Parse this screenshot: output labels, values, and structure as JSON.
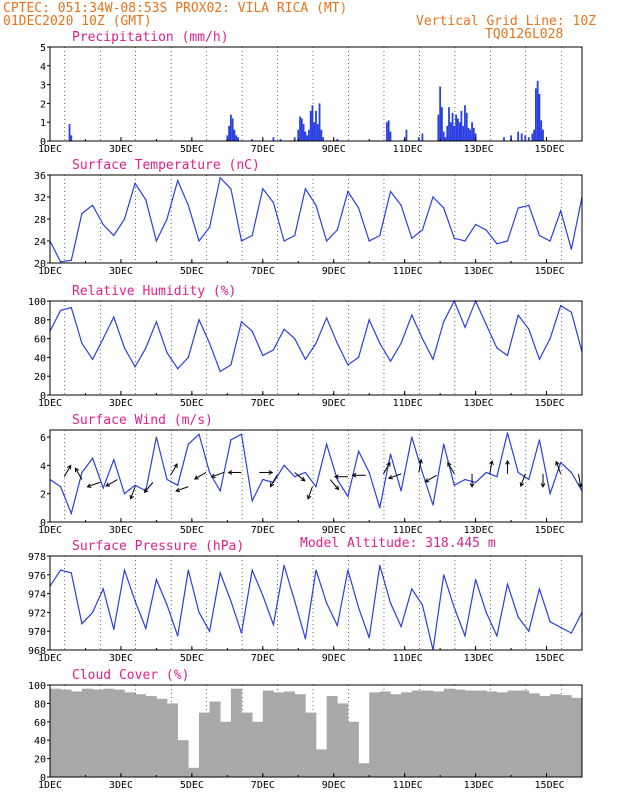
{
  "header": {
    "line1": "CPTEC:  051:34W-08:53S  PROX02: VILA RICA (MT)",
    "line2": "01DEC2020 10Z (GMT)",
    "grid_note": "Vertical Grid Line: 10Z",
    "code": "TQ0126L028",
    "altitude": "Model Altitude: 318.445 m"
  },
  "colors": {
    "header": "#e8731c",
    "title": "#e0208a",
    "series": "#2a3fe0",
    "cloud": "#a8a8a8"
  },
  "chart_data": [
    {
      "type": "bar",
      "title": "Precipitation (mm/h)",
      "ylim": [
        0,
        5
      ],
      "yticks": [
        "0",
        "1",
        "2",
        "3",
        "4",
        "5"
      ],
      "x_range_days": [
        1,
        16
      ],
      "xticks": [
        "1DEC",
        "3DEC",
        "5DEC",
        "7DEC",
        "9DEC",
        "11DEC",
        "13DEC",
        "15DEC"
      ],
      "x": [
        1.55,
        1.6,
        6.0,
        6.05,
        6.1,
        6.15,
        6.2,
        6.25,
        6.3,
        6.7,
        7.3,
        7.5,
        7.9,
        8.0,
        8.05,
        8.1,
        8.15,
        8.2,
        8.25,
        8.3,
        8.35,
        8.4,
        8.45,
        8.5,
        8.55,
        8.6,
        8.65,
        8.7,
        9.1,
        10.5,
        10.55,
        10.6,
        11.0,
        11.05,
        11.4,
        11.5,
        11.95,
        12.0,
        12.05,
        12.1,
        12.15,
        12.2,
        12.25,
        12.3,
        12.35,
        12.4,
        12.45,
        12.5,
        12.55,
        12.6,
        12.65,
        12.7,
        12.75,
        12.8,
        12.85,
        12.9,
        12.95,
        13.0,
        13.8,
        14.0,
        14.2,
        14.3,
        14.4,
        14.5,
        14.6,
        14.65,
        14.7,
        14.75,
        14.8,
        14.85,
        14.9
      ],
      "values": [
        0.9,
        0.3,
        0.3,
        0.8,
        1.4,
        1.2,
        0.6,
        0.3,
        0.2,
        0.1,
        0.2,
        0.1,
        0.2,
        0.6,
        1.3,
        1.2,
        0.9,
        0.5,
        0.3,
        0.6,
        1.6,
        1.9,
        1.0,
        1.6,
        0.9,
        2.0,
        0.6,
        0.2,
        0.1,
        1.0,
        1.1,
        0.5,
        0.1,
        0.6,
        0.2,
        0.4,
        1.4,
        2.9,
        1.8,
        0.5,
        0.2,
        0.8,
        1.8,
        1.0,
        1.5,
        0.8,
        1.4,
        1.2,
        1.0,
        1.6,
        0.8,
        1.9,
        1.5,
        0.7,
        0.6,
        1.0,
        0.7,
        0.4,
        0.2,
        0.3,
        0.5,
        0.4,
        0.3,
        0.2,
        0.4,
        0.6,
        2.8,
        3.2,
        2.5,
        1.1,
        0.6
      ]
    },
    {
      "type": "line",
      "title": "Surface Temperature (nC)",
      "ylim": [
        20,
        36
      ],
      "yticks": [
        "20",
        "24",
        "28",
        "32",
        "36"
      ],
      "x_range_days": [
        1,
        16
      ],
      "xticks": [
        "1DEC",
        "3DEC",
        "5DEC",
        "7DEC",
        "9DEC",
        "11DEC",
        "13DEC",
        "15DEC"
      ],
      "x": [
        1.0,
        1.3,
        1.6,
        1.9,
        2.2,
        2.5,
        2.8,
        3.1,
        3.4,
        3.7,
        4.0,
        4.3,
        4.6,
        4.9,
        5.2,
        5.5,
        5.8,
        6.1,
        6.4,
        6.7,
        7.0,
        7.3,
        7.6,
        7.9,
        8.2,
        8.5,
        8.8,
        9.1,
        9.4,
        9.7,
        10.0,
        10.3,
        10.6,
        10.9,
        11.2,
        11.5,
        11.8,
        12.1,
        12.4,
        12.7,
        13.0,
        13.3,
        13.6,
        13.9,
        14.2,
        14.5,
        14.8,
        15.1,
        15.4,
        15.7,
        16.0
      ],
      "values": [
        24,
        20.2,
        20.5,
        29,
        30.5,
        27,
        25,
        28,
        34.5,
        31.5,
        24,
        28,
        35,
        30.5,
        24,
        26.5,
        35.5,
        33.5,
        24,
        25,
        33.5,
        31,
        24,
        25,
        33.5,
        30.5,
        24,
        26,
        33,
        30,
        24,
        25,
        33,
        30.5,
        24.5,
        26,
        32,
        30,
        24.5,
        24,
        27,
        26,
        23.5,
        24,
        30,
        30.5,
        25,
        24,
        29.5,
        22.5,
        32
      ]
    },
    {
      "type": "line",
      "title": "Relative Humidity (%)",
      "ylim": [
        0,
        100
      ],
      "yticks": [
        "0",
        "20",
        "40",
        "60",
        "80",
        "100"
      ],
      "x_range_days": [
        1,
        16
      ],
      "xticks": [
        "1DEC",
        "3DEC",
        "5DEC",
        "7DEC",
        "9DEC",
        "11DEC",
        "13DEC",
        "15DEC"
      ],
      "x": [
        1.0,
        1.3,
        1.6,
        1.9,
        2.2,
        2.5,
        2.8,
        3.1,
        3.4,
        3.7,
        4.0,
        4.3,
        4.6,
        4.9,
        5.2,
        5.5,
        5.8,
        6.1,
        6.4,
        6.7,
        7.0,
        7.3,
        7.6,
        7.9,
        8.2,
        8.5,
        8.8,
        9.1,
        9.4,
        9.7,
        10.0,
        10.3,
        10.6,
        10.9,
        11.2,
        11.5,
        11.8,
        12.1,
        12.4,
        12.7,
        13.0,
        13.3,
        13.6,
        13.9,
        14.2,
        14.5,
        14.8,
        15.1,
        15.4,
        15.7,
        16.0
      ],
      "values": [
        68,
        90,
        93,
        55,
        38,
        60,
        83,
        50,
        30,
        50,
        78,
        45,
        28,
        40,
        80,
        55,
        25,
        32,
        78,
        68,
        42,
        48,
        70,
        60,
        38,
        55,
        82,
        55,
        32,
        40,
        80,
        55,
        36,
        55,
        85,
        60,
        38,
        78,
        100,
        72,
        100,
        75,
        50,
        42,
        85,
        70,
        38,
        60,
        95,
        88,
        46
      ]
    },
    {
      "type": "line",
      "title": "Surface Wind (m/s)",
      "ylim": [
        0,
        6.5
      ],
      "yticks": [
        "0",
        "2",
        "4",
        "6"
      ],
      "x_range_days": [
        1,
        16
      ],
      "xticks": [
        "1DEC",
        "3DEC",
        "5DEC",
        "7DEC",
        "9DEC",
        "11DEC",
        "13DEC",
        "15DEC"
      ],
      "x": [
        1.0,
        1.3,
        1.6,
        1.9,
        2.2,
        2.5,
        2.8,
        3.1,
        3.4,
        3.7,
        4.0,
        4.3,
        4.6,
        4.9,
        5.2,
        5.5,
        5.8,
        6.1,
        6.4,
        6.7,
        7.0,
        7.3,
        7.6,
        7.9,
        8.2,
        8.5,
        8.8,
        9.1,
        9.4,
        9.7,
        10.0,
        10.3,
        10.6,
        10.9,
        11.2,
        11.5,
        11.8,
        12.1,
        12.4,
        12.7,
        13.0,
        13.3,
        13.6,
        13.9,
        14.2,
        14.5,
        14.8,
        15.1,
        15.4,
        15.7,
        16.0
      ],
      "values": [
        3,
        2.5,
        0.6,
        3.5,
        4.5,
        2.4,
        4.4,
        2.0,
        2.6,
        2.2,
        6.0,
        3.0,
        2.6,
        5.5,
        6.2,
        3.5,
        2.2,
        5.8,
        6.2,
        1.5,
        3.0,
        2.8,
        4.0,
        3.2,
        3.5,
        2.5,
        5.5,
        3.0,
        1.8,
        5.0,
        3.5,
        1.0,
        4.8,
        2.2,
        6.0,
        3.5,
        1.2,
        5.5,
        2.6,
        3.0,
        2.8,
        3.5,
        3.2,
        6.3,
        3.5,
        3.0,
        5.8,
        2.0,
        4.2,
        3.5,
        2.2
      ],
      "arrows": {
        "x": [
          1.4,
          1.9,
          2.4,
          2.9,
          3.4,
          3.9,
          4.4,
          4.9,
          5.4,
          5.9,
          6.4,
          6.9,
          7.4,
          7.9,
          8.4,
          8.9,
          9.4,
          9.9,
          10.4,
          10.9,
          11.4,
          11.9,
          12.4,
          12.9,
          13.4,
          13.9,
          14.4,
          14.9,
          15.4,
          15.9
        ],
        "speed": [
          3.2,
          3.0,
          2.8,
          3.0,
          2.5,
          2.8,
          3.3,
          2.5,
          3.5,
          3.5,
          3.5,
          3.5,
          3.3,
          3.5,
          2.5,
          3.0,
          3.2,
          3.3,
          3.4,
          3.4,
          3.5,
          3.3,
          3.4,
          3.4,
          3.4,
          3.4,
          3.4,
          3.4,
          3.4,
          3.4
        ],
        "dir_deg": [
          60,
          120,
          200,
          210,
          250,
          230,
          60,
          200,
          210,
          200,
          180,
          0,
          240,
          320,
          250,
          310,
          180,
          180,
          60,
          200,
          80,
          210,
          120,
          270,
          80,
          90,
          250,
          270,
          110,
          280
        ]
      }
    },
    {
      "type": "line",
      "title": "Surface Pressure (hPa)",
      "ylim": [
        968,
        978
      ],
      "yticks": [
        "968",
        "970",
        "972",
        "974",
        "976",
        "978"
      ],
      "x_range_days": [
        1,
        16
      ],
      "xticks": [
        "1DEC",
        "3DEC",
        "5DEC",
        "7DEC",
        "9DEC",
        "11DEC",
        "13DEC",
        "15DEC"
      ],
      "x": [
        1.0,
        1.3,
        1.6,
        1.9,
        2.2,
        2.5,
        2.8,
        3.1,
        3.4,
        3.7,
        4.0,
        4.3,
        4.6,
        4.9,
        5.2,
        5.5,
        5.8,
        6.1,
        6.4,
        6.7,
        7.0,
        7.3,
        7.6,
        7.9,
        8.2,
        8.5,
        8.8,
        9.1,
        9.4,
        9.7,
        10.0,
        10.3,
        10.6,
        10.9,
        11.2,
        11.5,
        11.8,
        12.1,
        12.4,
        12.7,
        13.0,
        13.3,
        13.6,
        13.9,
        14.2,
        14.5,
        14.8,
        15.1,
        15.4,
        15.7,
        16.0
      ],
      "values": [
        974.8,
        976.5,
        976.2,
        970.8,
        972,
        974.5,
        970.2,
        976.5,
        973.2,
        970.3,
        975.5,
        972.8,
        969.5,
        976.5,
        972,
        970,
        976.2,
        973.2,
        969.8,
        976.5,
        973.8,
        970.7,
        977,
        973.2,
        969.2,
        976.5,
        973,
        970.6,
        976.5,
        972.5,
        969.3,
        977,
        973,
        970.5,
        974.5,
        972.8,
        968,
        976,
        972.5,
        969.5,
        975.5,
        972,
        969.5,
        975,
        971.5,
        970,
        974.5,
        971,
        970.4,
        969.8,
        972
      ]
    },
    {
      "type": "area",
      "title": "Cloud Cover (%)",
      "ylim": [
        0,
        100
      ],
      "yticks": [
        "0",
        "20",
        "40",
        "60",
        "80",
        "100"
      ],
      "x_range_days": [
        1,
        16
      ],
      "xticks": [
        "1DEC",
        "3DEC",
        "5DEC",
        "7DEC",
        "9DEC",
        "11DEC",
        "13DEC",
        "15DEC"
      ],
      "x": [
        1.0,
        1.3,
        1.6,
        1.9,
        2.2,
        2.5,
        2.8,
        3.1,
        3.4,
        3.7,
        4.0,
        4.3,
        4.6,
        4.9,
        5.2,
        5.5,
        5.8,
        6.1,
        6.4,
        6.7,
        7.0,
        7.3,
        7.6,
        7.9,
        8.2,
        8.5,
        8.8,
        9.1,
        9.4,
        9.7,
        10.0,
        10.3,
        10.6,
        10.9,
        11.2,
        11.5,
        11.8,
        12.1,
        12.4,
        12.7,
        13.0,
        13.3,
        13.6,
        13.9,
        14.2,
        14.5,
        14.8,
        15.1,
        15.4,
        15.7,
        16.0
      ],
      "values": [
        96,
        95,
        93,
        96,
        95,
        96,
        95,
        92,
        90,
        88,
        85,
        80,
        40,
        10,
        70,
        82,
        60,
        96,
        70,
        60,
        94,
        92,
        93,
        90,
        70,
        30,
        88,
        80,
        60,
        15,
        92,
        93,
        90,
        92,
        94,
        94,
        93,
        96,
        95,
        94,
        94,
        93,
        92,
        94,
        94,
        91,
        88,
        90,
        89,
        86,
        80
      ]
    }
  ]
}
